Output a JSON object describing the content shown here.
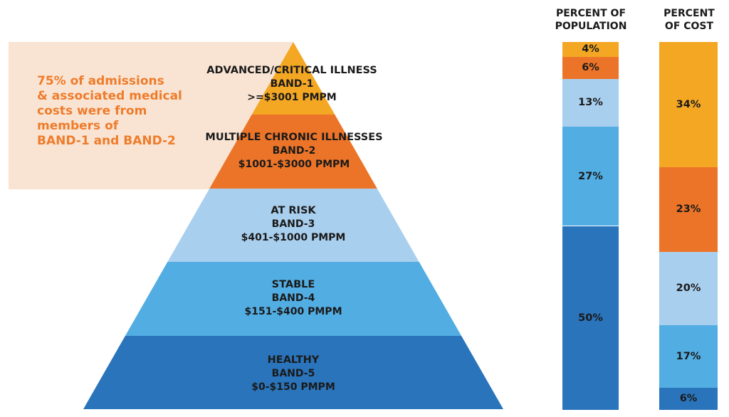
{
  "callout": {
    "text": "75% of admissions\n& associated medical\ncosts were from\nmembers of\nBAND-1 and BAND-2"
  },
  "bands": [
    {
      "name": "ADVANCED/CRITICAL ILLNESS",
      "band": "BAND-1",
      "range": ">=$3001 PMPM",
      "color": "#f4a723"
    },
    {
      "name": "MULTIPLE CHRONIC ILLNESSES",
      "band": "BAND-2",
      "range": "$1001-$3000 PMPM",
      "color": "#ec7428"
    },
    {
      "name": "AT RISK",
      "band": "BAND-3",
      "range": "$401-$1000 PMPM",
      "color": "#a9cfee"
    },
    {
      "name": "STABLE",
      "band": "BAND-4",
      "range": "$151-$400 PMPM",
      "color": "#52ade2"
    },
    {
      "name": "HEALTHY",
      "band": "BAND-5",
      "range": "$0-$150 PMPM",
      "color": "#2a74bb"
    }
  ],
  "columns": {
    "population": {
      "header": "PERCENT OF\nPOPULATION",
      "segments": [
        {
          "label": "4%",
          "value": 4,
          "color": "#f4a723"
        },
        {
          "label": "6%",
          "value": 6,
          "color": "#ec7428"
        },
        {
          "label": "13%",
          "value": 13,
          "color": "#a9cfee"
        },
        {
          "label": "27%",
          "value": 27,
          "color": "#52ade2"
        },
        {
          "label": "50%",
          "value": 50,
          "color": "#2a74bb"
        }
      ]
    },
    "cost": {
      "header": "PERCENT\nOF COST",
      "segments": [
        {
          "label": "34%",
          "value": 34,
          "color": "#f4a723"
        },
        {
          "label": "23%",
          "value": 23,
          "color": "#ec7428"
        },
        {
          "label": "20%",
          "value": 20,
          "color": "#a9cfee"
        },
        {
          "label": "17%",
          "value": 17,
          "color": "#52ade2"
        },
        {
          "label": "6%",
          "value": 6,
          "color": "#2a74bb"
        }
      ]
    }
  }
}
